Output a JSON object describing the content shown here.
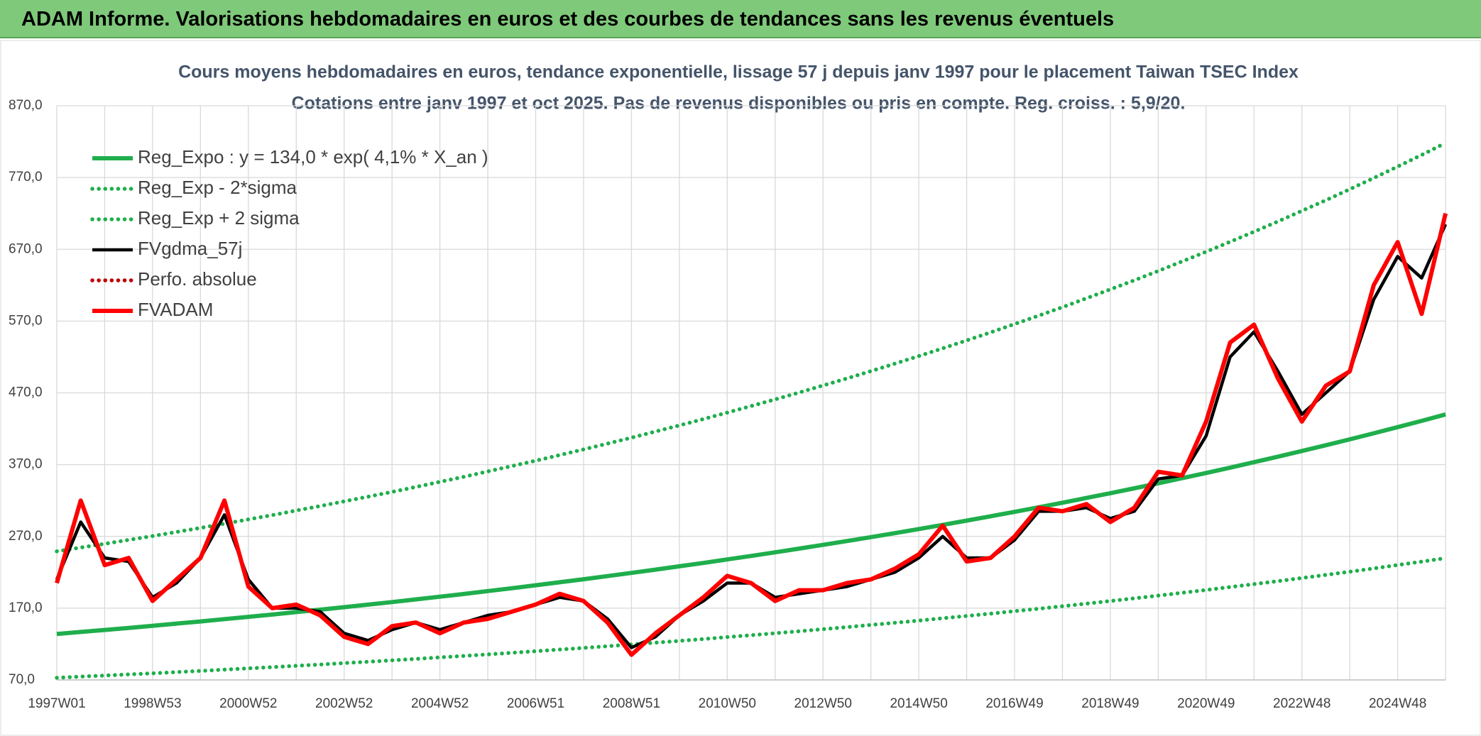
{
  "header": {
    "title": "ADAM Informe. Valorisations hebdomadaires en euros et des courbes de tendances sans les revenus éventuels"
  },
  "chart_data": {
    "type": "line",
    "title": "Cours moyens hebdomadaires en euros, tendance exponentielle, lissage 57 j depuis janv 1997 pour le placement Taiwan TSEC Index",
    "subtitle": "Cotations entre janv 1997 et oct 2025. Pas de revenus disponibles ou pris en compte. Reg. croiss. : 5,9/20.",
    "categories": [
      "1997W01",
      null,
      null,
      null,
      "1998W53",
      null,
      null,
      null,
      "2000W52",
      null,
      null,
      null,
      "2002W52",
      null,
      null,
      null,
      "2004W52",
      null,
      null,
      null,
      "2006W51",
      null,
      null,
      null,
      "2008W51",
      null,
      null,
      null,
      "2010W50",
      null,
      null,
      null,
      "2012W50",
      null,
      null,
      null,
      "2014W50",
      null,
      null,
      null,
      "2016W49",
      null,
      null,
      null,
      "2018W49",
      null,
      null,
      null,
      "2020W49",
      null,
      null,
      null,
      "2022W48",
      null,
      null,
      null,
      "2024W48",
      null,
      null
    ],
    "ylim": [
      70,
      870
    ],
    "yticks": [
      {
        "value": 70,
        "label": "70,0"
      },
      {
        "value": 170,
        "label": "170,0"
      },
      {
        "value": 270,
        "label": "270,0"
      },
      {
        "value": 370,
        "label": "370,0"
      },
      {
        "value": 470,
        "label": "470,0"
      },
      {
        "value": 570,
        "label": "570,0"
      },
      {
        "value": 670,
        "label": "670,0"
      },
      {
        "value": 770,
        "label": "770,0"
      },
      {
        "value": 870,
        "label": "870,0"
      }
    ],
    "grid": true,
    "legend": "top-left",
    "series": [
      {
        "name": "Reg_Expo : y = 134,0 * exp( 4,1% *  X_an )",
        "color": "#1fae4c",
        "style": "solid",
        "values": [
          134.0,
          136.8,
          139.6,
          142.5,
          145.4,
          148.5,
          151.5,
          154.7,
          157.9,
          161.1,
          164.5,
          167.9,
          171.4,
          174.9,
          178.5,
          182.2,
          186.0,
          189.8,
          193.8,
          197.8,
          201.9,
          206.1,
          210.3,
          214.7,
          219.1,
          223.7,
          228.3,
          233.0,
          237.9,
          242.8,
          247.8,
          252.9,
          258.2,
          263.5,
          269.0,
          274.5,
          280.2,
          286.0,
          292.0,
          298.0,
          304.2,
          310.5,
          316.9,
          323.5,
          330.2,
          337.0,
          344.0,
          351.1,
          358.4,
          365.8,
          373.4,
          381.1,
          389.0,
          397.0,
          405.2,
          413.6,
          422.2,
          430.9,
          439.9
        ]
      },
      {
        "name": "Reg_Exp - 2*sigma",
        "color": "#1fae4c",
        "style": "dotted",
        "values": [
          73.0,
          74.6,
          76.1,
          77.7,
          79.2,
          80.9,
          82.6,
          84.3,
          86.1,
          87.8,
          89.7,
          91.5,
          93.4,
          95.3,
          97.3,
          99.3,
          101.4,
          103.4,
          105.6,
          107.8,
          110.0,
          112.3,
          114.6,
          117.0,
          119.4,
          121.9,
          124.4,
          127.0,
          129.7,
          132.3,
          135.1,
          137.8,
          140.7,
          143.6,
          146.6,
          149.6,
          152.7,
          155.9,
          159.1,
          162.4,
          165.8,
          169.2,
          172.7,
          176.3,
          180.0,
          183.7,
          187.5,
          191.4,
          195.3,
          199.4,
          203.5,
          207.7,
          212.0,
          216.4,
          220.8,
          225.4,
          230.1,
          234.8,
          239.7
        ]
      },
      {
        "name": "Reg_Exp + 2 sigma",
        "color": "#1fae4c",
        "style": "dotted",
        "values": [
          249.2,
          254.4,
          259.7,
          265.1,
          270.4,
          276.2,
          281.8,
          287.7,
          293.7,
          299.6,
          306.0,
          312.3,
          318.8,
          325.3,
          332.0,
          338.9,
          346.0,
          353.0,
          360.5,
          367.9,
          375.5,
          383.3,
          391.2,
          399.3,
          407.5,
          416.1,
          424.6,
          433.4,
          442.5,
          451.6,
          460.9,
          470.4,
          480.3,
          490.1,
          500.3,
          510.6,
          521.2,
          532.0,
          543.1,
          554.3,
          565.8,
          577.5,
          589.4,
          601.7,
          614.2,
          626.8,
          639.8,
          653.1,
          666.6,
          680.4,
          694.5,
          708.8,
          723.5,
          738.4,
          753.7,
          769.3,
          785.3,
          801.5,
          818.2
        ]
      },
      {
        "name": "FVgdma_57j",
        "color": "#000000",
        "style": "solid",
        "values": [
          210,
          290,
          240,
          235,
          185,
          205,
          240,
          300,
          210,
          170,
          170,
          165,
          135,
          125,
          140,
          150,
          140,
          150,
          160,
          165,
          175,
          185,
          180,
          155,
          115,
          130,
          160,
          180,
          205,
          205,
          185,
          190,
          195,
          200,
          210,
          220,
          240,
          270,
          240,
          240,
          265,
          305,
          305,
          310,
          295,
          305,
          350,
          355,
          410,
          520,
          555,
          500,
          440,
          470,
          500,
          600,
          660,
          630,
          705
        ]
      },
      {
        "name": "Perfo. absolue",
        "color": "#c00000",
        "style": "dotted",
        "values": [
          null,
          null,
          null,
          null,
          null,
          null,
          null,
          null,
          null,
          null,
          null,
          null,
          null,
          null,
          null,
          null,
          null,
          null,
          null,
          null,
          null,
          null,
          null,
          null,
          null,
          null,
          null,
          null,
          null,
          null,
          null,
          null,
          null,
          null,
          null,
          null,
          null,
          null,
          null,
          null,
          null,
          null,
          null,
          null,
          null,
          null,
          null,
          null,
          null,
          null,
          null,
          null,
          null,
          null,
          null,
          null,
          null,
          null,
          null
        ]
      },
      {
        "name": "FVADAM",
        "color": "#ff0000",
        "style": "solid",
        "values": [
          205,
          320,
          230,
          240,
          180,
          210,
          240,
          320,
          200,
          170,
          175,
          160,
          130,
          120,
          145,
          150,
          135,
          150,
          155,
          165,
          175,
          190,
          180,
          150,
          105,
          135,
          160,
          185,
          215,
          205,
          180,
          195,
          195,
          205,
          210,
          225,
          245,
          285,
          235,
          240,
          270,
          310,
          305,
          315,
          290,
          310,
          360,
          355,
          430,
          540,
          565,
          490,
          430,
          480,
          500,
          620,
          680,
          580,
          720
        ]
      }
    ]
  }
}
